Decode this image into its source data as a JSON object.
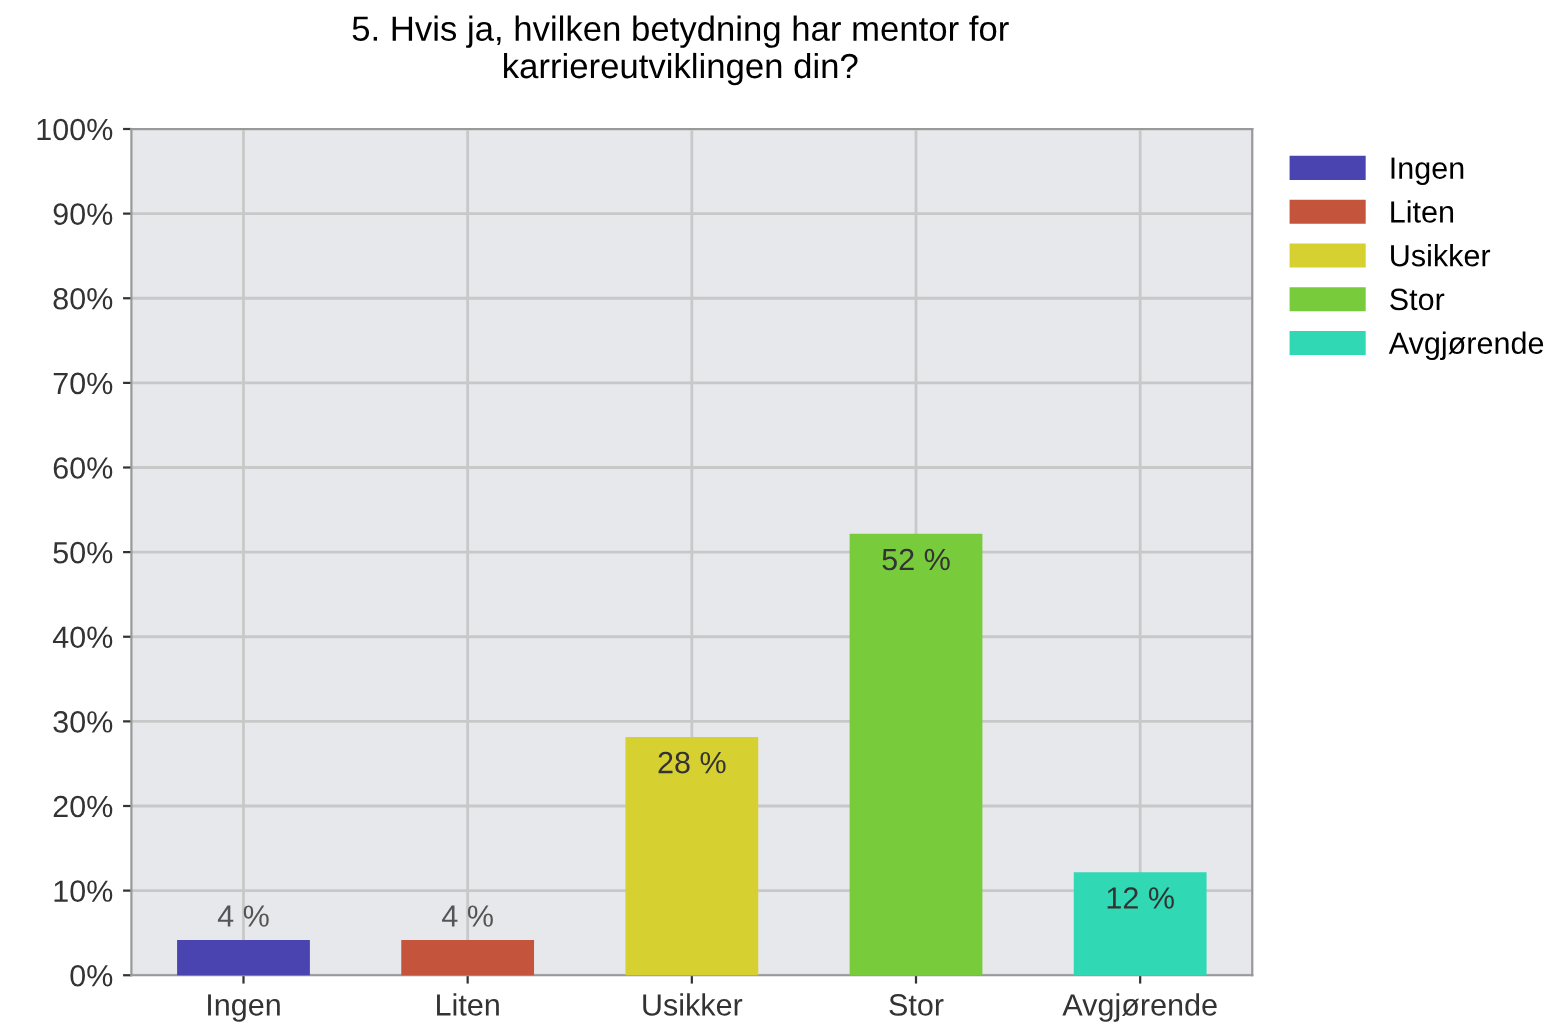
{
  "chart_data": {
    "type": "bar",
    "title": "5. Hvis ja, hvilken betydning har mentor for\nkarriereutviklingen din?",
    "categories": [
      "Ingen",
      "Liten",
      "Usikker",
      "Stor",
      "Avgjørende"
    ],
    "series": [
      {
        "name": "Ingen",
        "color": "#4a44b0",
        "values": [
          4,
          null,
          null,
          null,
          null
        ],
        "value_labels": [
          "4 %",
          null,
          null,
          null,
          null
        ]
      },
      {
        "name": "Liten",
        "color": "#c4553c",
        "values": [
          null,
          4,
          null,
          null,
          null
        ],
        "value_labels": [
          null,
          "4 %",
          null,
          null,
          null
        ]
      },
      {
        "name": "Usikker",
        "color": "#d6d030",
        "values": [
          null,
          null,
          28,
          null,
          null
        ],
        "value_labels": [
          null,
          null,
          "28 %",
          null,
          null
        ]
      },
      {
        "name": "Stor",
        "color": "#78cc3c",
        "values": [
          null,
          null,
          null,
          52,
          null
        ],
        "value_labels": [
          null,
          null,
          null,
          "52 %",
          null
        ]
      },
      {
        "name": "Avgjørende",
        "color": "#30d8b4",
        "values": [
          null,
          null,
          null,
          null,
          12
        ],
        "value_labels": [
          null,
          null,
          null,
          null,
          "12 %"
        ]
      }
    ],
    "ylim": [
      0,
      100
    ],
    "yticks": [
      {
        "value": 0,
        "label": "0%"
      },
      {
        "value": 10,
        "label": "10%"
      },
      {
        "value": 20,
        "label": "20%"
      },
      {
        "value": 30,
        "label": "30%"
      },
      {
        "value": 40,
        "label": "40%"
      },
      {
        "value": 50,
        "label": "50%"
      },
      {
        "value": 60,
        "label": "60%"
      },
      {
        "value": 70,
        "label": "70%"
      },
      {
        "value": 80,
        "label": "80%"
      },
      {
        "value": 90,
        "label": "90%"
      },
      {
        "value": 100,
        "label": "100%"
      }
    ],
    "grid": true,
    "legend": "right"
  }
}
